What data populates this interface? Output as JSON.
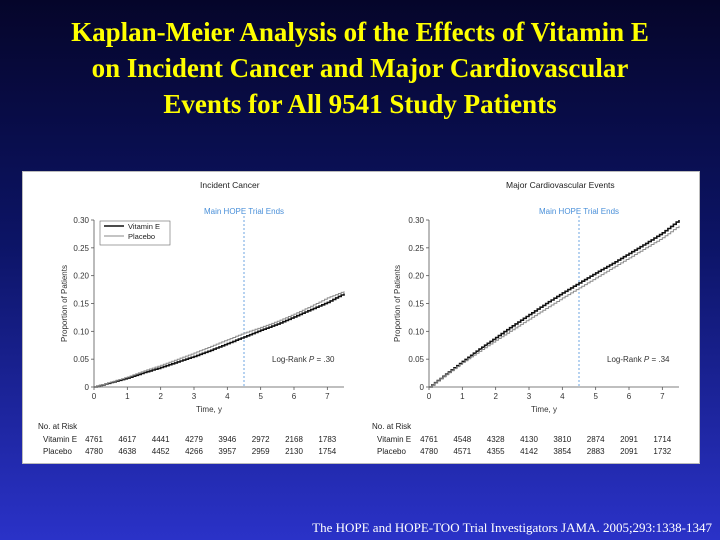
{
  "slide": {
    "title_lines": [
      "Kaplan-Meier Analysis of the Effects of Vitamin E",
      "on Incident Cancer and Major Cardiovascular",
      "Events for All 9541 Study Patients"
    ],
    "citation": "The HOPE and HOPE-TOO Trial Investigators JAMA. 2005;293:1338-1347"
  },
  "colors": {
    "title": "#ffff00",
    "vitamin_e": "#111111",
    "placebo": "#8a8a8a",
    "trial_end_line": "#4a90d9",
    "background_top": "#05052a",
    "background_bottom": "#2a32c8"
  },
  "chart_data": [
    {
      "type": "line",
      "title": "Incident Cancer",
      "xlabel": "Time, y",
      "ylabel": "Proportion of Patients",
      "xlim": [
        0,
        7.5
      ],
      "ylim": [
        0,
        0.3
      ],
      "xticks": [
        "0",
        "1",
        "2",
        "3",
        "4",
        "5",
        "6",
        "7"
      ],
      "yticks": [
        "0",
        "0.05",
        "0.10",
        "0.15",
        "0.20",
        "0.25",
        "0.30"
      ],
      "grid": false,
      "legend": "top-left",
      "annotation_trial_end": {
        "text": "Main HOPE Trial Ends",
        "x": 4.5
      },
      "log_rank": {
        "prefix": "Log-Rank ",
        "p": "P",
        "value": " = .30"
      },
      "series": [
        {
          "name": "Vitamin E",
          "x": [
            0,
            0.5,
            1,
            1.5,
            2,
            2.5,
            3,
            3.5,
            4,
            4.5,
            5,
            5.5,
            6,
            6.5,
            7,
            7.5
          ],
          "values": [
            0,
            0.008,
            0.016,
            0.026,
            0.035,
            0.045,
            0.055,
            0.066,
            0.078,
            0.09,
            0.102,
            0.113,
            0.126,
            0.139,
            0.152,
            0.168
          ]
        },
        {
          "name": "Placebo",
          "x": [
            0,
            0.5,
            1,
            1.5,
            2,
            2.5,
            3,
            3.5,
            4,
            4.5,
            5,
            5.5,
            6,
            6.5,
            7,
            7.5
          ],
          "values": [
            0,
            0.009,
            0.018,
            0.029,
            0.039,
            0.05,
            0.061,
            0.073,
            0.085,
            0.097,
            0.107,
            0.118,
            0.131,
            0.145,
            0.16,
            0.172
          ]
        }
      ],
      "risk_table": {
        "header": "No. at Risk",
        "rows": [
          {
            "label": "Vitamin E",
            "values": [
              "4761",
              "4617",
              "4441",
              "4279",
              "3946",
              "2972",
              "2168",
              "1783"
            ]
          },
          {
            "label": "Placebo",
            "values": [
              "4780",
              "4638",
              "4452",
              "4266",
              "3957",
              "2959",
              "2130",
              "1754"
            ]
          }
        ]
      }
    },
    {
      "type": "line",
      "title": "Major Cardiovascular Events",
      "xlabel": "Time, y",
      "ylabel": "Proportion of Patients",
      "xlim": [
        0,
        7.5
      ],
      "ylim": [
        0,
        0.3
      ],
      "xticks": [
        "0",
        "1",
        "2",
        "3",
        "4",
        "5",
        "6",
        "7"
      ],
      "yticks": [
        "0",
        "0.05",
        "0.10",
        "0.15",
        "0.20",
        "0.25",
        "0.30"
      ],
      "grid": false,
      "annotation_trial_end": {
        "text": "Main HOPE Trial Ends",
        "x": 4.5
      },
      "log_rank": {
        "prefix": "Log-Rank ",
        "p": "P",
        "value": " = .34"
      },
      "series": [
        {
          "name": "Vitamin E",
          "x": [
            0,
            0.5,
            1,
            1.5,
            2,
            2.5,
            3,
            3.5,
            4,
            4.5,
            5,
            5.5,
            6,
            6.5,
            7,
            7.5
          ],
          "values": [
            0,
            0.023,
            0.046,
            0.068,
            0.089,
            0.11,
            0.13,
            0.15,
            0.169,
            0.187,
            0.205,
            0.222,
            0.24,
            0.258,
            0.277,
            0.3
          ]
        },
        {
          "name": "Placebo",
          "x": [
            0,
            0.5,
            1,
            1.5,
            2,
            2.5,
            3,
            3.5,
            4,
            4.5,
            5,
            5.5,
            6,
            6.5,
            7,
            7.5
          ],
          "values": [
            0,
            0.022,
            0.044,
            0.064,
            0.084,
            0.103,
            0.122,
            0.141,
            0.16,
            0.178,
            0.196,
            0.214,
            0.232,
            0.25,
            0.268,
            0.29
          ]
        }
      ],
      "risk_table": {
        "header": "No. at Risk",
        "rows": [
          {
            "label": "Vitamin E",
            "values": [
              "4761",
              "4548",
              "4328",
              "4130",
              "3810",
              "2874",
              "2091",
              "1714"
            ]
          },
          {
            "label": "Placebo",
            "values": [
              "4780",
              "4571",
              "4355",
              "4142",
              "3854",
              "2883",
              "2091",
              "1732"
            ]
          }
        ]
      }
    }
  ]
}
